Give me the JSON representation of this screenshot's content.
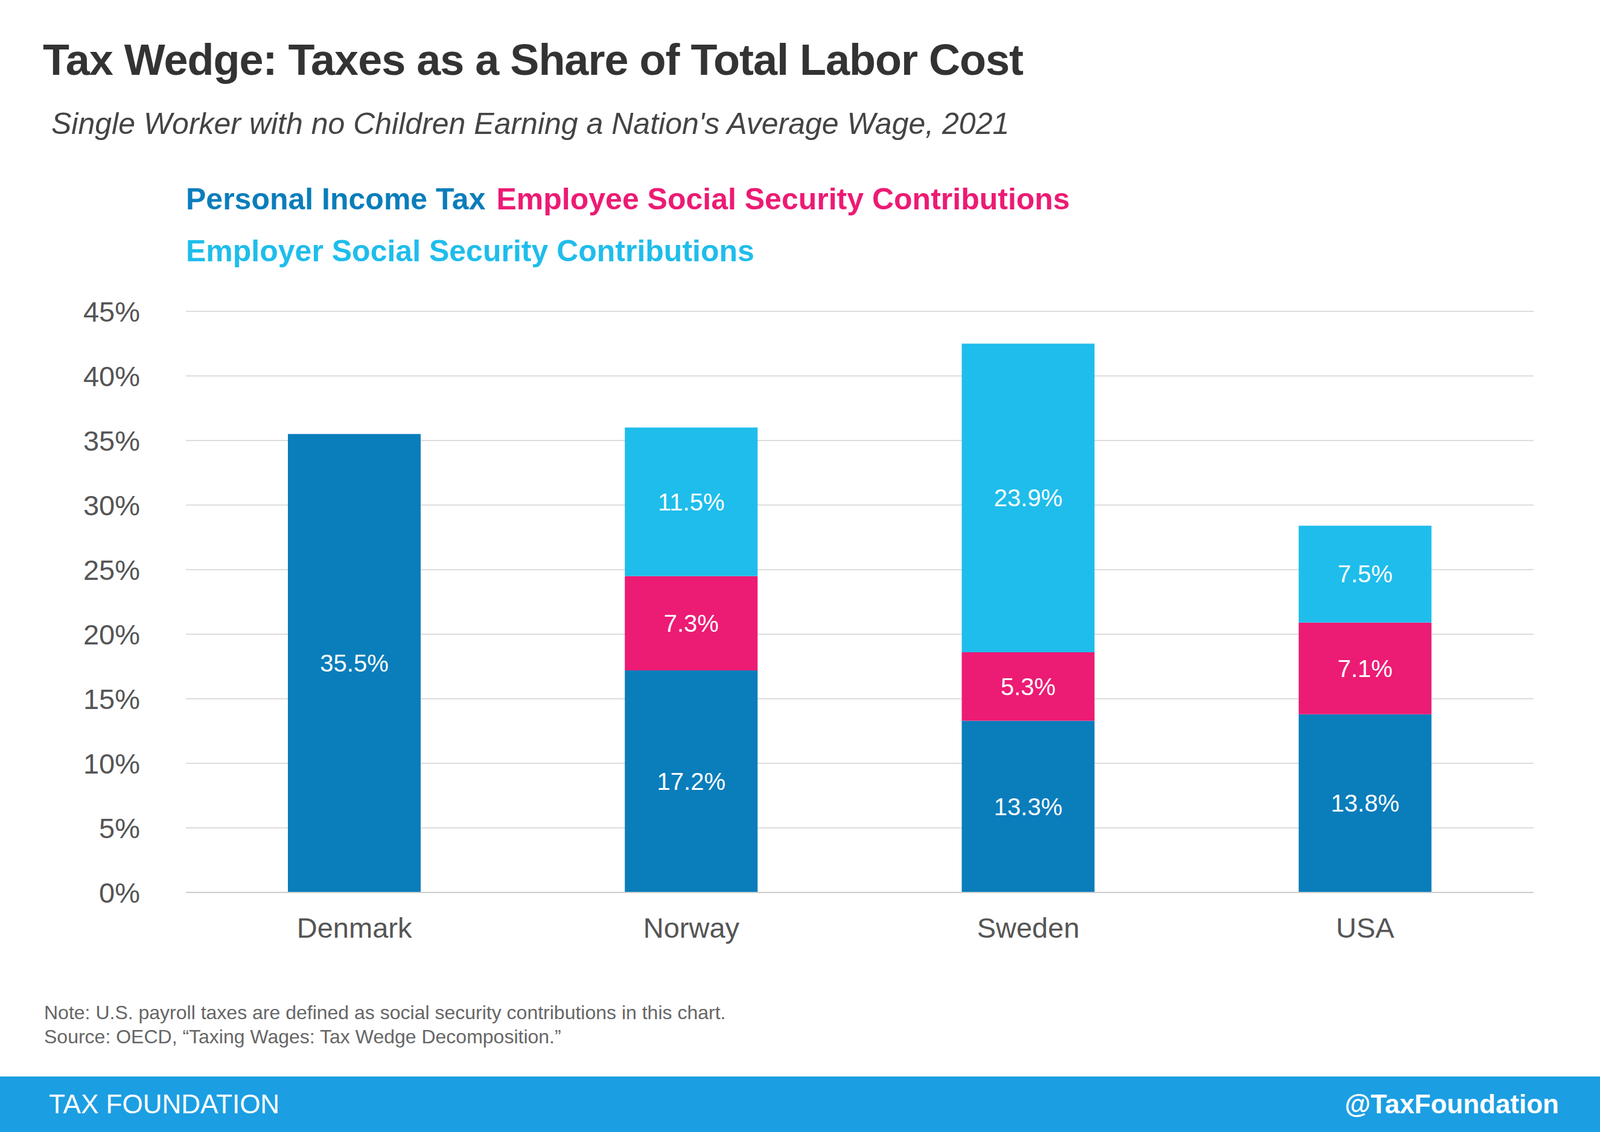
{
  "chart_data": {
    "type": "bar",
    "title": "Tax Wedge: Taxes as a Share of Total Labor Cost",
    "subtitle": "Single Worker with no Children Earning a Nation's Average Wage, 2021",
    "categories": [
      "Denmark",
      "Norway",
      "Sweden",
      "USA"
    ],
    "series": [
      {
        "name": "Personal Income Tax",
        "color": "#0a7dbb",
        "values": [
          35.5,
          17.2,
          13.3,
          13.8
        ],
        "value_labels": [
          "35.5%",
          "17.2%",
          "13.3%",
          "13.8%"
        ]
      },
      {
        "name": "Employee Social Security Contributions",
        "color": "#ec1b74",
        "values": [
          null,
          7.3,
          5.3,
          7.1
        ],
        "value_labels": [
          null,
          "7.3%",
          "5.3%",
          "7.1%"
        ]
      },
      {
        "name": "Employer Social Security Contributions",
        "color": "#1fbdeb",
        "values": [
          null,
          11.5,
          23.9,
          7.5
        ],
        "value_labels": [
          null,
          "11.5%",
          "23.9%",
          "7.5%"
        ]
      }
    ],
    "ylim": [
      0,
      45
    ],
    "yticks": [
      {
        "value": 0,
        "label": "0%"
      },
      {
        "value": 5,
        "label": "5%"
      },
      {
        "value": 10,
        "label": "10%"
      },
      {
        "value": 15,
        "label": "15%"
      },
      {
        "value": 20,
        "label": "20%"
      },
      {
        "value": 25,
        "label": "25%"
      },
      {
        "value": 30,
        "label": "30%"
      },
      {
        "value": 35,
        "label": "35%"
      },
      {
        "value": 40,
        "label": "40%"
      },
      {
        "value": 45,
        "label": "45%"
      }
    ],
    "grid": true,
    "stacked": true,
    "data_labels": true,
    "legend": "top",
    "annotations": [
      "Note: U.S. payroll taxes are defined as social security contributions in this chart.",
      "Source: OECD, “Taxing Wages: Tax Wedge Decomposition.”",
      "TAX FOUNDATION",
      "@TaxFoundation"
    ]
  }
}
